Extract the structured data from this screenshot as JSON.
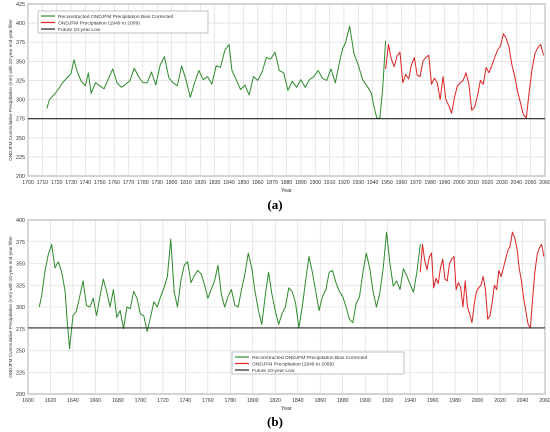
{
  "captions": {
    "a": "(a)",
    "b": "(b)"
  },
  "colors": {
    "reconstructed": "#2e8b2e",
    "observed": "#dd2222",
    "low": "#222222",
    "grid": "#d8d8d8",
    "axis": "#555555",
    "text": "#333333"
  },
  "chart_data": [
    {
      "type": "line",
      "xlabel": "Year",
      "ylabel": "ONDJFM Cummulative Precipitation (mm) with 10-year end-year filter",
      "xlim": [
        1700,
        2060
      ],
      "ylim": [
        200,
        425
      ],
      "xticks": [
        1700,
        1710,
        1720,
        1730,
        1740,
        1750,
        1760,
        1770,
        1780,
        1790,
        1800,
        1810,
        1820,
        1830,
        1840,
        1850,
        1860,
        1870,
        1880,
        1890,
        1900,
        1910,
        1920,
        1930,
        1940,
        1950,
        1960,
        1970,
        1980,
        1990,
        2000,
        2010,
        2020,
        2030,
        2040,
        2050,
        2060
      ],
      "yticks": [
        200,
        225,
        250,
        275,
        300,
        325,
        350,
        375,
        400,
        425
      ],
      "grid": true,
      "legend": {
        "placement": "top-left",
        "entries": [
          "Reconstructed ONDJFM Precipitation Bias Corrected",
          "ONDJFM Precipitation (1949 to 2009)",
          "Future 10-year Low"
        ]
      },
      "series": [
        {
          "name": "Reconstructed ONDJFM Precipitation Bias Corrected",
          "x": [
            1713,
            1715,
            1718,
            1721,
            1724,
            1727,
            1730,
            1732,
            1734,
            1737,
            1740,
            1742,
            1744,
            1747,
            1750,
            1753,
            1756,
            1759,
            1762,
            1765,
            1768,
            1771,
            1774,
            1777,
            1780,
            1783,
            1786,
            1789,
            1792,
            1795,
            1798,
            1801,
            1804,
            1807,
            1810,
            1813,
            1816,
            1819,
            1822,
            1825,
            1828,
            1831,
            1834,
            1837,
            1840,
            1842,
            1845,
            1848,
            1851,
            1854,
            1857,
            1860,
            1863,
            1866,
            1869,
            1872,
            1875,
            1878,
            1881,
            1884,
            1887,
            1890,
            1893,
            1896,
            1899,
            1902,
            1905,
            1908,
            1911,
            1914,
            1917,
            1919,
            1921,
            1924,
            1927,
            1930,
            1933,
            1936,
            1939,
            1941,
            1943,
            1945,
            1947,
            1949
          ],
          "values": [
            288,
            300,
            306,
            313,
            322,
            328,
            334,
            352,
            338,
            324,
            318,
            335,
            308,
            322,
            318,
            314,
            327,
            340,
            322,
            316,
            320,
            325,
            341,
            330,
            322,
            322,
            336,
            319,
            345,
            356,
            329,
            322,
            318,
            344,
            326,
            303,
            322,
            338,
            326,
            330,
            320,
            344,
            342,
            364,
            372,
            338,
            326,
            313,
            319,
            306,
            330,
            325,
            336,
            355,
            353,
            362,
            338,
            335,
            312,
            324,
            316,
            326,
            316,
            326,
            330,
            338,
            328,
            325,
            340,
            322,
            350,
            366,
            374,
            396,
            360,
            345,
            326,
            318,
            309,
            290,
            275,
            276,
            315,
            377
          ]
        },
        {
          "name": "ONDJFM Precipitation (1949 to 2009)",
          "x": [
            1949,
            1951,
            1953,
            1955,
            1957,
            1959,
            1961,
            1963,
            1965,
            1967,
            1969,
            1971,
            1973,
            1975,
            1977,
            1979,
            1981,
            1983,
            1985,
            1987,
            1989,
            1991,
            1993,
            1995,
            1997,
            1999,
            2001,
            2003,
            2005,
            2007,
            2009,
            2011,
            2013,
            2015,
            2017,
            2019,
            2021,
            2023,
            2025,
            2027,
            2029,
            2031,
            2033,
            2035,
            2037,
            2039,
            2041,
            2043,
            2045,
            2047,
            2049,
            2051,
            2053,
            2055,
            2057,
            2059
          ],
          "values": [
            340,
            372,
            353,
            343,
            357,
            362,
            322,
            333,
            327,
            345,
            355,
            332,
            330,
            350,
            355,
            358,
            320,
            328,
            322,
            300,
            330,
            300,
            292,
            282,
            303,
            318,
            322,
            325,
            335,
            320,
            286,
            290,
            305,
            325,
            320,
            342,
            335,
            345,
            355,
            365,
            370,
            386,
            380,
            368,
            345,
            330,
            310,
            295,
            280,
            276,
            310,
            340,
            360,
            368,
            372,
            358
          ]
        },
        {
          "name": "Future 10-year Low",
          "x": [
            1700,
            2060
          ],
          "values": [
            275,
            275
          ]
        }
      ]
    },
    {
      "type": "line",
      "xlabel": "Year",
      "ylabel": "ONDJFM Cummulative Precipitation (mm) with 10-year end-year filter",
      "xlim": [
        1600,
        2060
      ],
      "ylim": [
        200,
        400
      ],
      "xticks": [
        1600,
        1620,
        1640,
        1660,
        1680,
        1700,
        1720,
        1740,
        1760,
        1780,
        1800,
        1820,
        1840,
        1860,
        1880,
        1900,
        1920,
        1940,
        1960,
        1980,
        2000,
        2020,
        2040,
        2060
      ],
      "yticks": [
        200,
        225,
        250,
        275,
        300,
        325,
        350,
        375,
        400
      ],
      "grid": true,
      "legend": {
        "placement": "bottom-center",
        "entries": [
          "Reconstructed ONDJFM Precipitation Bias Corrected",
          "ONDJFM Precipitation (1949 to 2009)",
          "Future 10-year Low"
        ]
      },
      "series": [
        {
          "name": "Reconstructed ONDJFM Precipitation Bias Corrected",
          "x": [
            1610,
            1612,
            1615,
            1618,
            1621,
            1624,
            1627,
            1630,
            1633,
            1635,
            1637,
            1640,
            1643,
            1646,
            1649,
            1652,
            1655,
            1658,
            1661,
            1664,
            1667,
            1670,
            1673,
            1676,
            1679,
            1682,
            1685,
            1688,
            1691,
            1694,
            1697,
            1700,
            1703,
            1706,
            1709,
            1712,
            1715,
            1718,
            1721,
            1724,
            1727,
            1730,
            1733,
            1736,
            1739,
            1742,
            1745,
            1748,
            1751,
            1754,
            1757,
            1760,
            1763,
            1766,
            1769,
            1772,
            1775,
            1778,
            1781,
            1784,
            1787,
            1790,
            1793,
            1796,
            1799,
            1802,
            1805,
            1808,
            1811,
            1814,
            1817,
            1820,
            1823,
            1826,
            1829,
            1832,
            1835,
            1838,
            1841,
            1844,
            1847,
            1850,
            1853,
            1856,
            1859,
            1862,
            1865,
            1868,
            1871,
            1874,
            1877,
            1880,
            1883,
            1886,
            1889,
            1892,
            1895,
            1898,
            1901,
            1904,
            1907,
            1910,
            1913,
            1916,
            1919,
            1922,
            1925,
            1928,
            1931,
            1934,
            1937,
            1940,
            1943,
            1946,
            1949
          ],
          "values": [
            300,
            312,
            340,
            360,
            372,
            345,
            352,
            340,
            318,
            282,
            252,
            290,
            295,
            312,
            330,
            302,
            300,
            310,
            290,
            312,
            332,
            318,
            300,
            320,
            288,
            296,
            275,
            300,
            298,
            318,
            310,
            292,
            290,
            272,
            288,
            306,
            300,
            312,
            322,
            335,
            378,
            318,
            300,
            330,
            348,
            352,
            328,
            336,
            342,
            338,
            326,
            310,
            320,
            330,
            348,
            315,
            300,
            312,
            320,
            302,
            300,
            320,
            338,
            362,
            345,
            318,
            296,
            280,
            312,
            340,
            315,
            296,
            280,
            292,
            300,
            322,
            318,
            305,
            276,
            300,
            330,
            358,
            340,
            318,
            296,
            312,
            320,
            340,
            342,
            328,
            318,
            312,
            300,
            286,
            282,
            304,
            312,
            340,
            362,
            345,
            318,
            300,
            316,
            344,
            386,
            350,
            324,
            330,
            320,
            344,
            336,
            326,
            317,
            340,
            372
          ]
        },
        {
          "name": "ONDJFM Precipitation (1949 to 2009)",
          "x": [
            1949,
            1951,
            1953,
            1955,
            1957,
            1959,
            1961,
            1963,
            1965,
            1967,
            1969,
            1971,
            1973,
            1975,
            1977,
            1979,
            1981,
            1983,
            1985,
            1987,
            1989,
            1991,
            1993,
            1995,
            1997,
            1999,
            2001,
            2003,
            2005,
            2007,
            2009,
            2011,
            2013,
            2015,
            2017,
            2019,
            2021,
            2023,
            2025,
            2027,
            2029,
            2031,
            2033,
            2035,
            2037,
            2039,
            2041,
            2043,
            2045,
            2047,
            2049,
            2051,
            2053,
            2055,
            2057,
            2059
          ],
          "values": [
            340,
            372,
            353,
            343,
            357,
            362,
            322,
            333,
            327,
            345,
            355,
            332,
            330,
            350,
            355,
            358,
            320,
            328,
            322,
            300,
            330,
            300,
            292,
            282,
            303,
            318,
            322,
            325,
            335,
            320,
            286,
            290,
            305,
            325,
            320,
            342,
            335,
            345,
            355,
            365,
            370,
            386,
            380,
            368,
            345,
            330,
            310,
            295,
            280,
            276,
            310,
            340,
            360,
            368,
            372,
            358
          ]
        },
        {
          "name": "Future 10-year Low",
          "x": [
            1600,
            2060
          ],
          "values": [
            276,
            276
          ]
        }
      ]
    }
  ]
}
